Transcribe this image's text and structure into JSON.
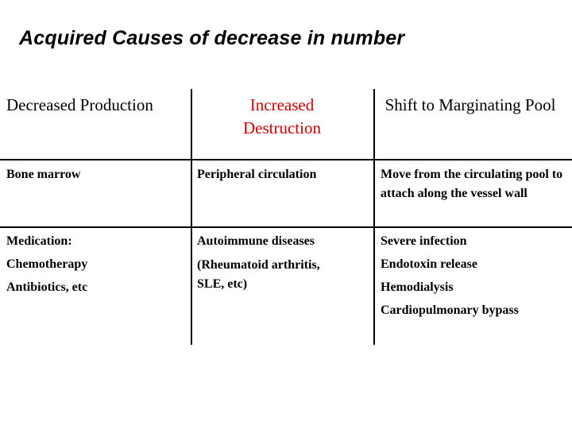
{
  "title": "Acquired Causes of decrease in number",
  "colors": {
    "accent": "#cc0000",
    "text": "#000000",
    "background": "#ffffff"
  },
  "table": {
    "headers": [
      "Decreased Production",
      "Increased Destruction",
      "Shift to Marginating Pool"
    ],
    "rows": [
      [
        "Bone marrow",
        "Peripheral circulation",
        "Move from the circulating pool to attach along the vessel wall"
      ],
      [
        [
          "Medication:",
          "Chemotherapy",
          "Antibiotics, etc"
        ],
        [
          "Autoimmune diseases",
          "(Rheumatoid arthritis,",
          "SLE, etc)"
        ],
        [
          "Severe infection",
          "Endotoxin release",
          "Hemodialysis",
          "Cardiopulmonary bypass"
        ]
      ]
    ]
  }
}
